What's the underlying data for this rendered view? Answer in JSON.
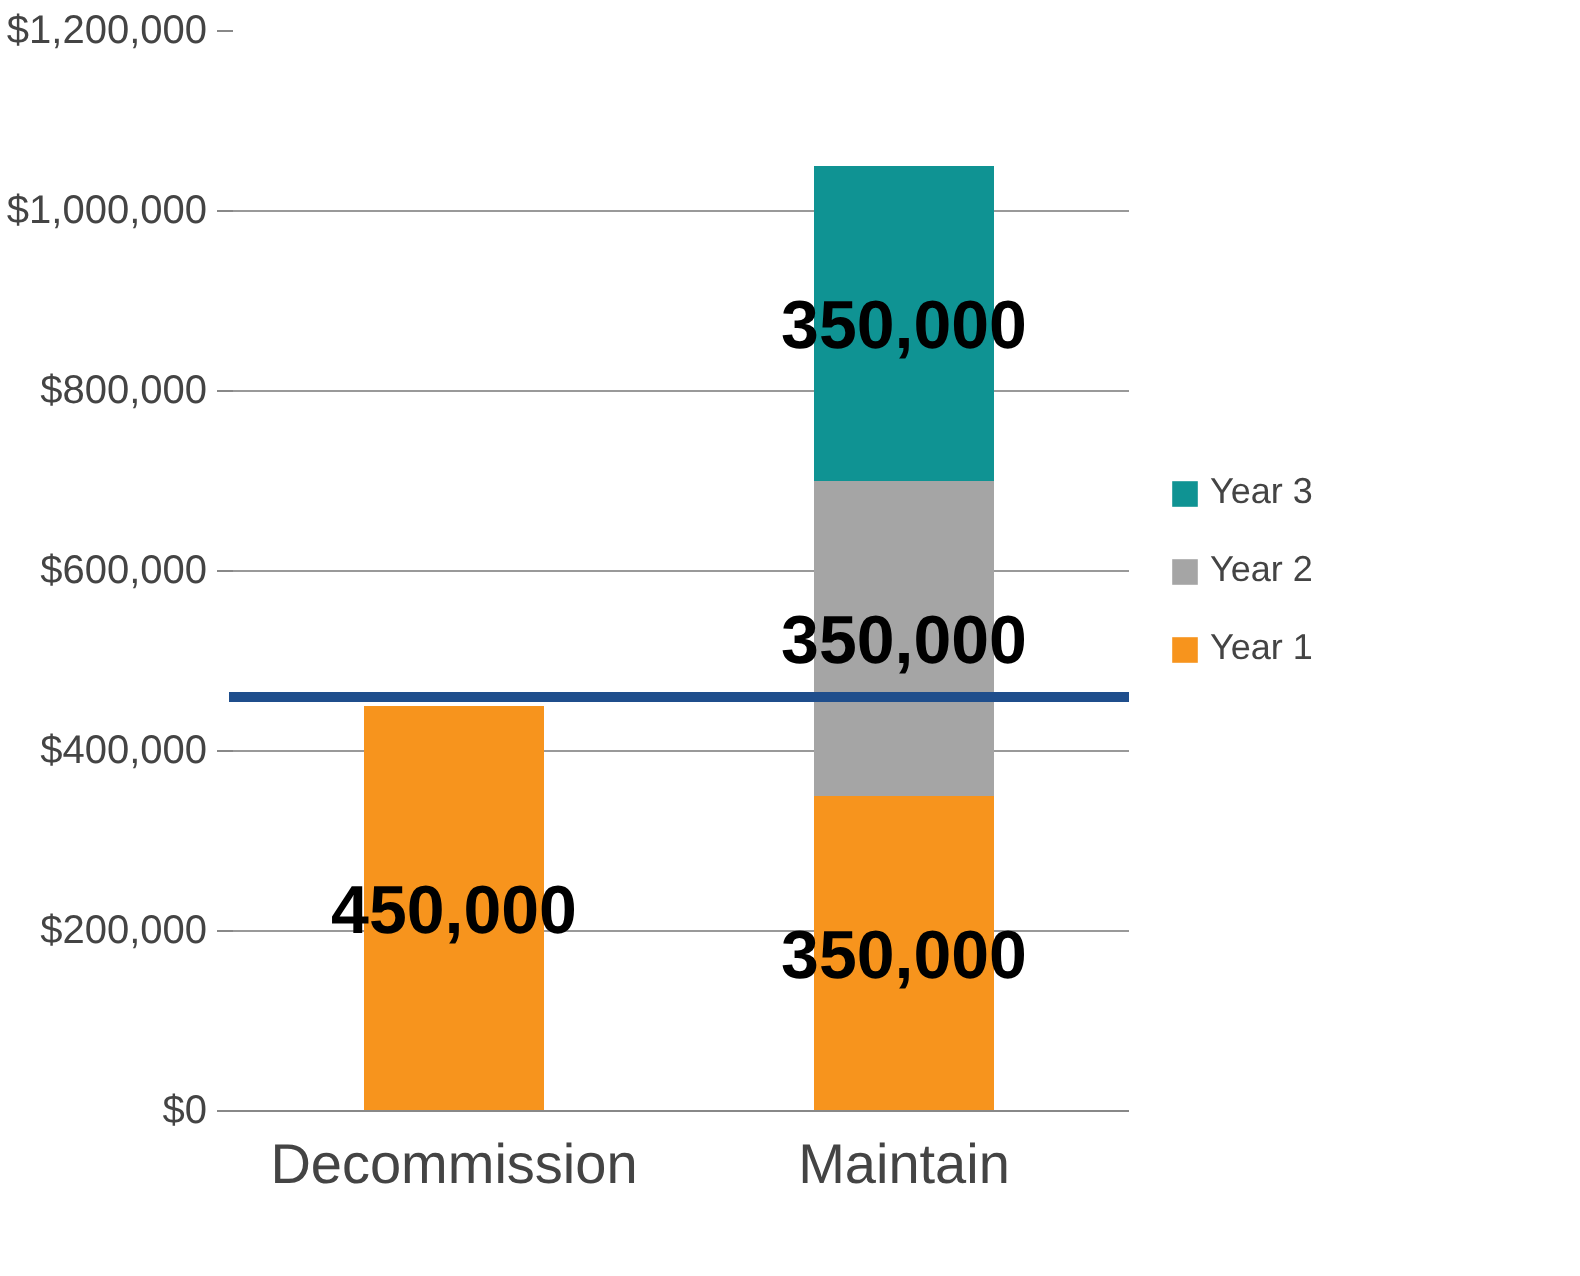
{
  "chart_data": {
    "type": "bar",
    "stacked": true,
    "categories": [
      "Decommission",
      "Maintain"
    ],
    "series": [
      {
        "name": "Year 1",
        "color": "#f7941d",
        "values": [
          450000,
          350000
        ],
        "value_labels": [
          "450,000",
          "350,000"
        ]
      },
      {
        "name": "Year 2",
        "color": "#a5a5a5",
        "values": [
          null,
          350000
        ],
        "value_labels": [
          null,
          "350,000"
        ]
      },
      {
        "name": "Year 3",
        "color": "#0f9393",
        "values": [
          null,
          350000
        ],
        "value_labels": [
          null,
          "350,000"
        ]
      }
    ],
    "ylim": [
      0,
      1200000
    ],
    "yticks": [
      {
        "value": 0,
        "label": "$0"
      },
      {
        "value": 200000,
        "label": "$200,000"
      },
      {
        "value": 400000,
        "label": "$400,000"
      },
      {
        "value": 600000,
        "label": "$600,000"
      },
      {
        "value": 800000,
        "label": "$800,000"
      },
      {
        "value": 1000000,
        "label": "$1,000,000"
      },
      {
        "value": 1200000,
        "label": "$1,200,000"
      }
    ],
    "ref_lines": [
      {
        "axis": "y",
        "value": 460000,
        "color": "#1f4e8c"
      }
    ],
    "grid": "y",
    "legend": "right"
  }
}
